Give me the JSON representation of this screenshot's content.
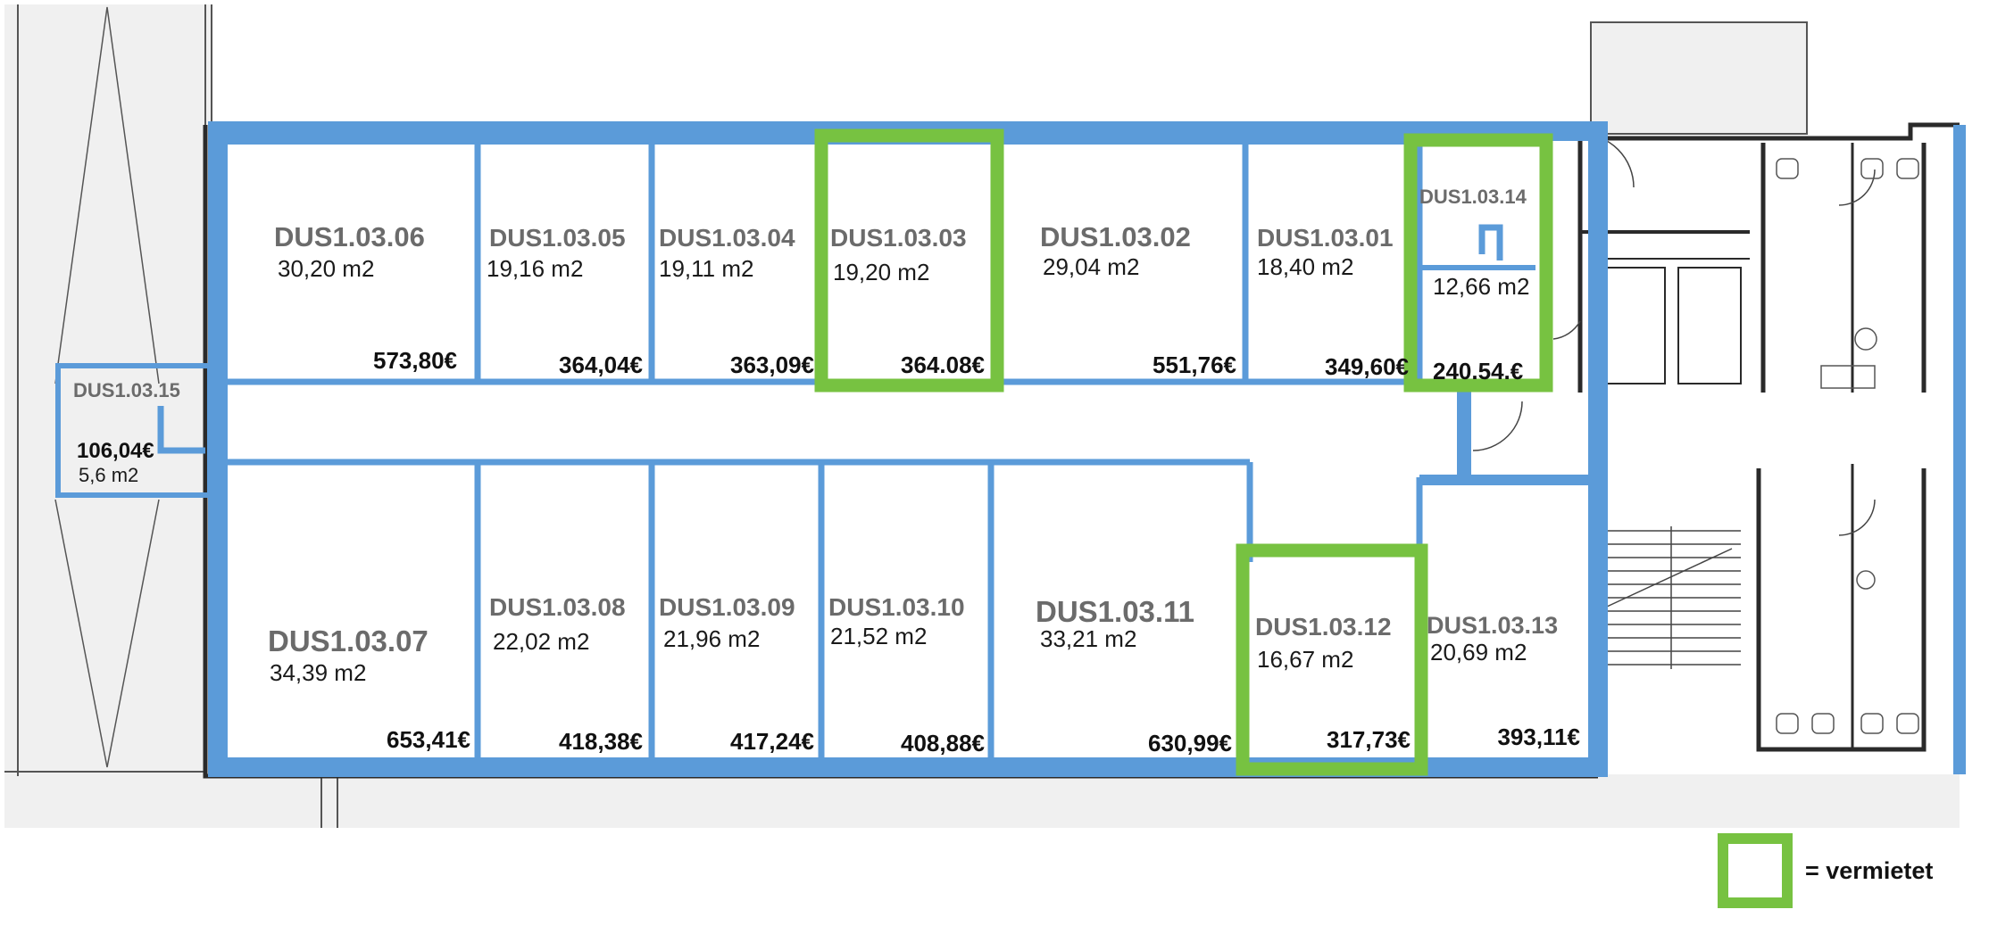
{
  "colors": {
    "room_outline": "#5b9bd9",
    "rented_outline": "#77c241",
    "building_line": "#2a2a2a",
    "surroundings_fill": "#f0f0f0"
  },
  "rooms": [
    {
      "id": "DUS1.03.06",
      "area": "30,20 m2",
      "price": "573,80€",
      "rented": false
    },
    {
      "id": "DUS1.03.05",
      "area": "19,16 m2",
      "price": "364,04€",
      "rented": false
    },
    {
      "id": "DUS1.03.04",
      "area": "19,11 m2",
      "price": "363,09€",
      "rented": false
    },
    {
      "id": "DUS1.03.03",
      "area": "19,20 m2",
      "price": "364.08€",
      "rented": true
    },
    {
      "id": "DUS1.03.02",
      "area": "29,04 m2",
      "price": "551,76€",
      "rented": false
    },
    {
      "id": "DUS1.03.01",
      "area": "18,40 m2",
      "price": "349,60€",
      "rented": false
    },
    {
      "id": "DUS1.03.14",
      "area": "12,66 m2",
      "price": "240.54.€",
      "rented": true
    },
    {
      "id": "DUS1.03.15",
      "area": "5,6 m2",
      "price": "106,04€",
      "rented": false
    },
    {
      "id": "DUS1.03.07",
      "area": "34,39 m2",
      "price": "653,41€",
      "rented": false
    },
    {
      "id": "DUS1.03.08",
      "area": "22,02 m2",
      "price": "418,38€",
      "rented": false
    },
    {
      "id": "DUS1.03.09",
      "area": "21,96 m2",
      "price": "417,24€",
      "rented": false
    },
    {
      "id": "DUS1.03.10",
      "area": "21,52 m2",
      "price": "408,88€",
      "rented": false
    },
    {
      "id": "DUS1.03.11",
      "area": "33,21 m2",
      "price": "630,99€",
      "rented": false
    },
    {
      "id": "DUS1.03.12",
      "area": "16,67 m2",
      "price": "317,73€",
      "rented": true
    },
    {
      "id": "DUS1.03.13",
      "area": "20,69 m2",
      "price": "393,11€",
      "rented": false
    }
  ],
  "legend": {
    "label": "= vermietet"
  }
}
